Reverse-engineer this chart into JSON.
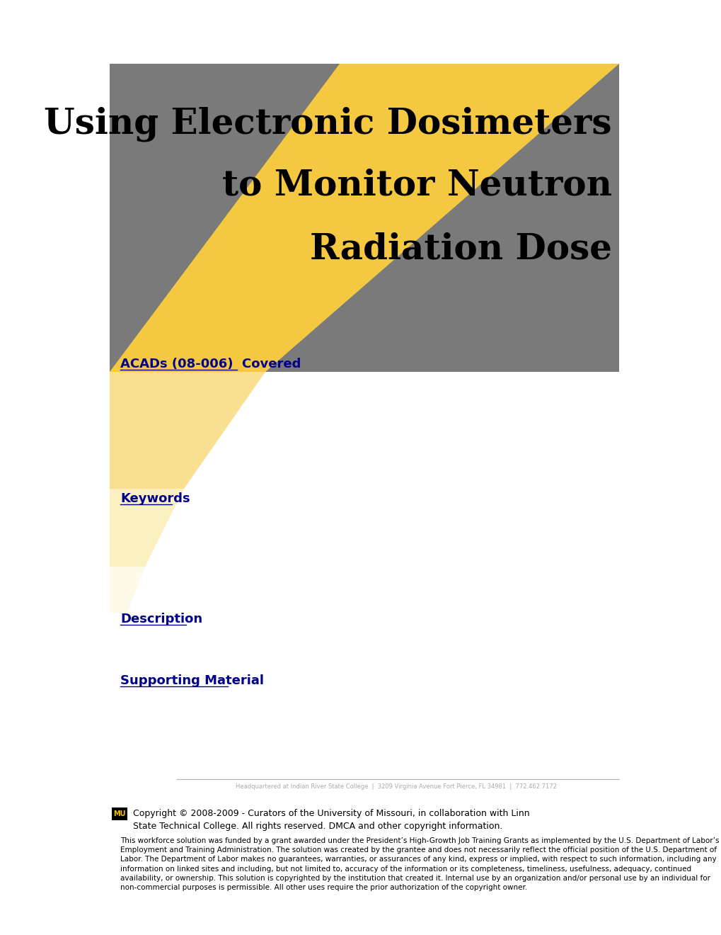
{
  "bg_color": "#ffffff",
  "title_line1": "Using Electronic Dosimeters",
  "title_line2": "to Monitor Neutron",
  "title_line3": "Radiation Dose",
  "title_fontsize": 36,
  "title_color": "#000000",
  "acad_text": "ACADs (08-006)  Covered",
  "acad_color": "#00008B",
  "acad_fontsize": 13,
  "keywords_text": "Keywords",
  "keywords_color": "#00008B",
  "keywords_fontsize": 13,
  "description_text": "Description",
  "description_color": "#00008B",
  "description_fontsize": 13,
  "supporting_text": "Supporting Material",
  "supporting_color": "#00008B",
  "supporting_fontsize": 13,
  "yellow_color": "#F5C842",
  "yellow_faint1": "#F9E090",
  "yellow_faint2": "#FBF0C0",
  "yellow_faint3": "#FDFAE8",
  "gray_color": "#7a7a7a",
  "separator_line_color": "#b0b0b0",
  "footer_address": "Headquartered at Indian River State College  |  3209 Virginia Avenue Fort Pierce, FL 34981  |  772.462.7172",
  "footer_address_color": "#aaaaaa",
  "footer_address_size": 6,
  "copyright_line": "Copyright © 2008-2009 - Curators of the University of Missouri, in collaboration with Linn\nState Technical College. All rights reserved. DMCA and other copyright information.",
  "copyright_size": 9,
  "copyright_color": "#000000",
  "mu_label": "MU",
  "disclaimer": "This workforce solution was funded by a grant awarded under the President’s High-Growth Job Training Grants as implemented by the U.S. Department of Labor’s Employment and Training Administration. The solution was created by the grantee and does not necessarily reflect the official position of the U.S. Department of Labor. The Department of Labor makes no guarantees, warranties, or assurances of any kind, express or implied, with respect to such information, including any information on linked sites and including, but not limited to, accuracy of the information or its completeness, timeliness, usefulness, adequacy, continued availability, or ownership. This solution is copyrighted by the institution that created it. Internal use by an organization and/or personal use by an individual for non-commercial purposes is permissible. All other uses require the prior authorization of the copyright owner.",
  "disclaimer_size": 7.5,
  "disclaimer_color": "#000000"
}
